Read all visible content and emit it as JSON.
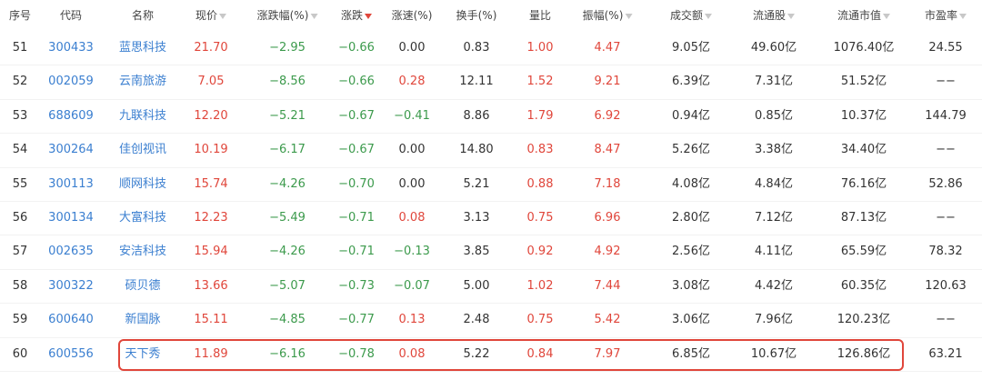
{
  "table": {
    "headers": [
      "序号",
      "代码",
      "名称",
      "现价",
      "涨跌幅(%)",
      "涨跌",
      "涨速(%)",
      "换手(%)",
      "量比",
      "振幅(%)",
      "成交额",
      "流通股",
      "流通市值",
      "市盈率"
    ],
    "rows": [
      [
        "51",
        "300433",
        "蓝思科技",
        "21.70",
        "−2.95",
        "−0.66",
        "0.00",
        "0.83",
        "1.00",
        "4.47",
        "9.05亿",
        "49.60亿",
        "1076.40亿",
        "24.55"
      ],
      [
        "52",
        "002059",
        "云南旅游",
        "7.05",
        "−8.56",
        "−0.66",
        "0.28",
        "12.11",
        "1.52",
        "9.21",
        "6.39亿",
        "7.31亿",
        "51.52亿",
        "−−"
      ],
      [
        "53",
        "688609",
        "九联科技",
        "12.20",
        "−5.21",
        "−0.67",
        "−0.41",
        "8.86",
        "1.79",
        "6.92",
        "0.94亿",
        "0.85亿",
        "10.37亿",
        "144.79"
      ],
      [
        "54",
        "300264",
        "佳创视讯",
        "10.19",
        "−6.17",
        "−0.67",
        "0.00",
        "14.80",
        "0.83",
        "8.47",
        "5.26亿",
        "3.38亿",
        "34.40亿",
        "−−"
      ],
      [
        "55",
        "300113",
        "顺网科技",
        "15.74",
        "−4.26",
        "−0.70",
        "0.00",
        "5.21",
        "0.88",
        "7.18",
        "4.08亿",
        "4.84亿",
        "76.16亿",
        "52.86"
      ],
      [
        "56",
        "300134",
        "大富科技",
        "12.23",
        "−5.49",
        "−0.71",
        "0.08",
        "3.13",
        "0.75",
        "6.96",
        "2.80亿",
        "7.12亿",
        "87.13亿",
        "−−"
      ],
      [
        "57",
        "002635",
        "安洁科技",
        "15.94",
        "−4.26",
        "−0.71",
        "−0.13",
        "3.85",
        "0.92",
        "4.92",
        "2.56亿",
        "4.11亿",
        "65.59亿",
        "78.32"
      ],
      [
        "58",
        "300322",
        "硕贝德",
        "13.66",
        "−5.07",
        "−0.73",
        "−0.07",
        "5.00",
        "1.02",
        "7.44",
        "3.08亿",
        "4.42亿",
        "60.35亿",
        "120.63"
      ],
      [
        "59",
        "600640",
        "新国脉",
        "15.11",
        "−4.85",
        "−0.77",
        "0.13",
        "2.48",
        "0.75",
        "5.42",
        "3.06亿",
        "7.96亿",
        "120.23亿",
        "−−"
      ],
      [
        "60",
        "600556",
        "天下秀",
        "11.89",
        "−6.16",
        "−0.78",
        "0.08",
        "5.22",
        "0.84",
        "7.97",
        "6.85亿",
        "10.67亿",
        "126.86亿",
        "63.21"
      ]
    ]
  }
}
